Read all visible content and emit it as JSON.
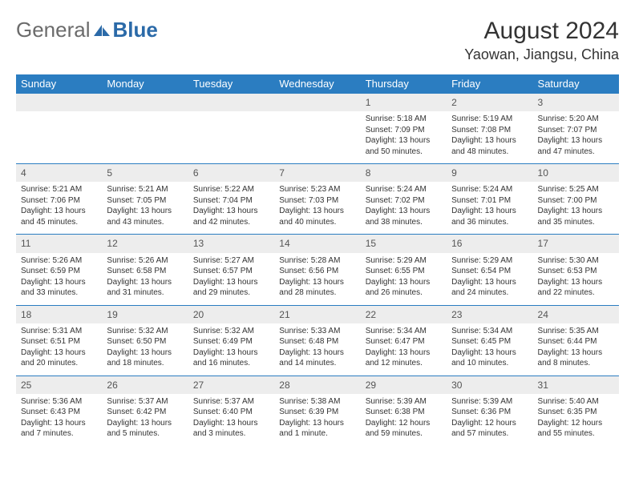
{
  "logo": {
    "general": "General",
    "blue": "Blue"
  },
  "title": "August 2024",
  "location": "Yaowan, Jiangsu, China",
  "dayNames": [
    "Sunday",
    "Monday",
    "Tuesday",
    "Wednesday",
    "Thursday",
    "Friday",
    "Saturday"
  ],
  "colors": {
    "headerBg": "#2b7dc1",
    "headerText": "#ffffff",
    "dayNumBg": "#ededed",
    "border": "#2b7dc1",
    "logoAccent": "#2b6aa8"
  },
  "firstDayOffset": 4,
  "days": [
    {
      "n": 1,
      "sunrise": "5:18 AM",
      "sunset": "7:09 PM",
      "daylight": "13 hours and 50 minutes."
    },
    {
      "n": 2,
      "sunrise": "5:19 AM",
      "sunset": "7:08 PM",
      "daylight": "13 hours and 48 minutes."
    },
    {
      "n": 3,
      "sunrise": "5:20 AM",
      "sunset": "7:07 PM",
      "daylight": "13 hours and 47 minutes."
    },
    {
      "n": 4,
      "sunrise": "5:21 AM",
      "sunset": "7:06 PM",
      "daylight": "13 hours and 45 minutes."
    },
    {
      "n": 5,
      "sunrise": "5:21 AM",
      "sunset": "7:05 PM",
      "daylight": "13 hours and 43 minutes."
    },
    {
      "n": 6,
      "sunrise": "5:22 AM",
      "sunset": "7:04 PM",
      "daylight": "13 hours and 42 minutes."
    },
    {
      "n": 7,
      "sunrise": "5:23 AM",
      "sunset": "7:03 PM",
      "daylight": "13 hours and 40 minutes."
    },
    {
      "n": 8,
      "sunrise": "5:24 AM",
      "sunset": "7:02 PM",
      "daylight": "13 hours and 38 minutes."
    },
    {
      "n": 9,
      "sunrise": "5:24 AM",
      "sunset": "7:01 PM",
      "daylight": "13 hours and 36 minutes."
    },
    {
      "n": 10,
      "sunrise": "5:25 AM",
      "sunset": "7:00 PM",
      "daylight": "13 hours and 35 minutes."
    },
    {
      "n": 11,
      "sunrise": "5:26 AM",
      "sunset": "6:59 PM",
      "daylight": "13 hours and 33 minutes."
    },
    {
      "n": 12,
      "sunrise": "5:26 AM",
      "sunset": "6:58 PM",
      "daylight": "13 hours and 31 minutes."
    },
    {
      "n": 13,
      "sunrise": "5:27 AM",
      "sunset": "6:57 PM",
      "daylight": "13 hours and 29 minutes."
    },
    {
      "n": 14,
      "sunrise": "5:28 AM",
      "sunset": "6:56 PM",
      "daylight": "13 hours and 28 minutes."
    },
    {
      "n": 15,
      "sunrise": "5:29 AM",
      "sunset": "6:55 PM",
      "daylight": "13 hours and 26 minutes."
    },
    {
      "n": 16,
      "sunrise": "5:29 AM",
      "sunset": "6:54 PM",
      "daylight": "13 hours and 24 minutes."
    },
    {
      "n": 17,
      "sunrise": "5:30 AM",
      "sunset": "6:53 PM",
      "daylight": "13 hours and 22 minutes."
    },
    {
      "n": 18,
      "sunrise": "5:31 AM",
      "sunset": "6:51 PM",
      "daylight": "13 hours and 20 minutes."
    },
    {
      "n": 19,
      "sunrise": "5:32 AM",
      "sunset": "6:50 PM",
      "daylight": "13 hours and 18 minutes."
    },
    {
      "n": 20,
      "sunrise": "5:32 AM",
      "sunset": "6:49 PM",
      "daylight": "13 hours and 16 minutes."
    },
    {
      "n": 21,
      "sunrise": "5:33 AM",
      "sunset": "6:48 PM",
      "daylight": "13 hours and 14 minutes."
    },
    {
      "n": 22,
      "sunrise": "5:34 AM",
      "sunset": "6:47 PM",
      "daylight": "13 hours and 12 minutes."
    },
    {
      "n": 23,
      "sunrise": "5:34 AM",
      "sunset": "6:45 PM",
      "daylight": "13 hours and 10 minutes."
    },
    {
      "n": 24,
      "sunrise": "5:35 AM",
      "sunset": "6:44 PM",
      "daylight": "13 hours and 8 minutes."
    },
    {
      "n": 25,
      "sunrise": "5:36 AM",
      "sunset": "6:43 PM",
      "daylight": "13 hours and 7 minutes."
    },
    {
      "n": 26,
      "sunrise": "5:37 AM",
      "sunset": "6:42 PM",
      "daylight": "13 hours and 5 minutes."
    },
    {
      "n": 27,
      "sunrise": "5:37 AM",
      "sunset": "6:40 PM",
      "daylight": "13 hours and 3 minutes."
    },
    {
      "n": 28,
      "sunrise": "5:38 AM",
      "sunset": "6:39 PM",
      "daylight": "13 hours and 1 minute."
    },
    {
      "n": 29,
      "sunrise": "5:39 AM",
      "sunset": "6:38 PM",
      "daylight": "12 hours and 59 minutes."
    },
    {
      "n": 30,
      "sunrise": "5:39 AM",
      "sunset": "6:36 PM",
      "daylight": "12 hours and 57 minutes."
    },
    {
      "n": 31,
      "sunrise": "5:40 AM",
      "sunset": "6:35 PM",
      "daylight": "12 hours and 55 minutes."
    }
  ],
  "labels": {
    "sunrise": "Sunrise:",
    "sunset": "Sunset:",
    "daylight": "Daylight:"
  }
}
